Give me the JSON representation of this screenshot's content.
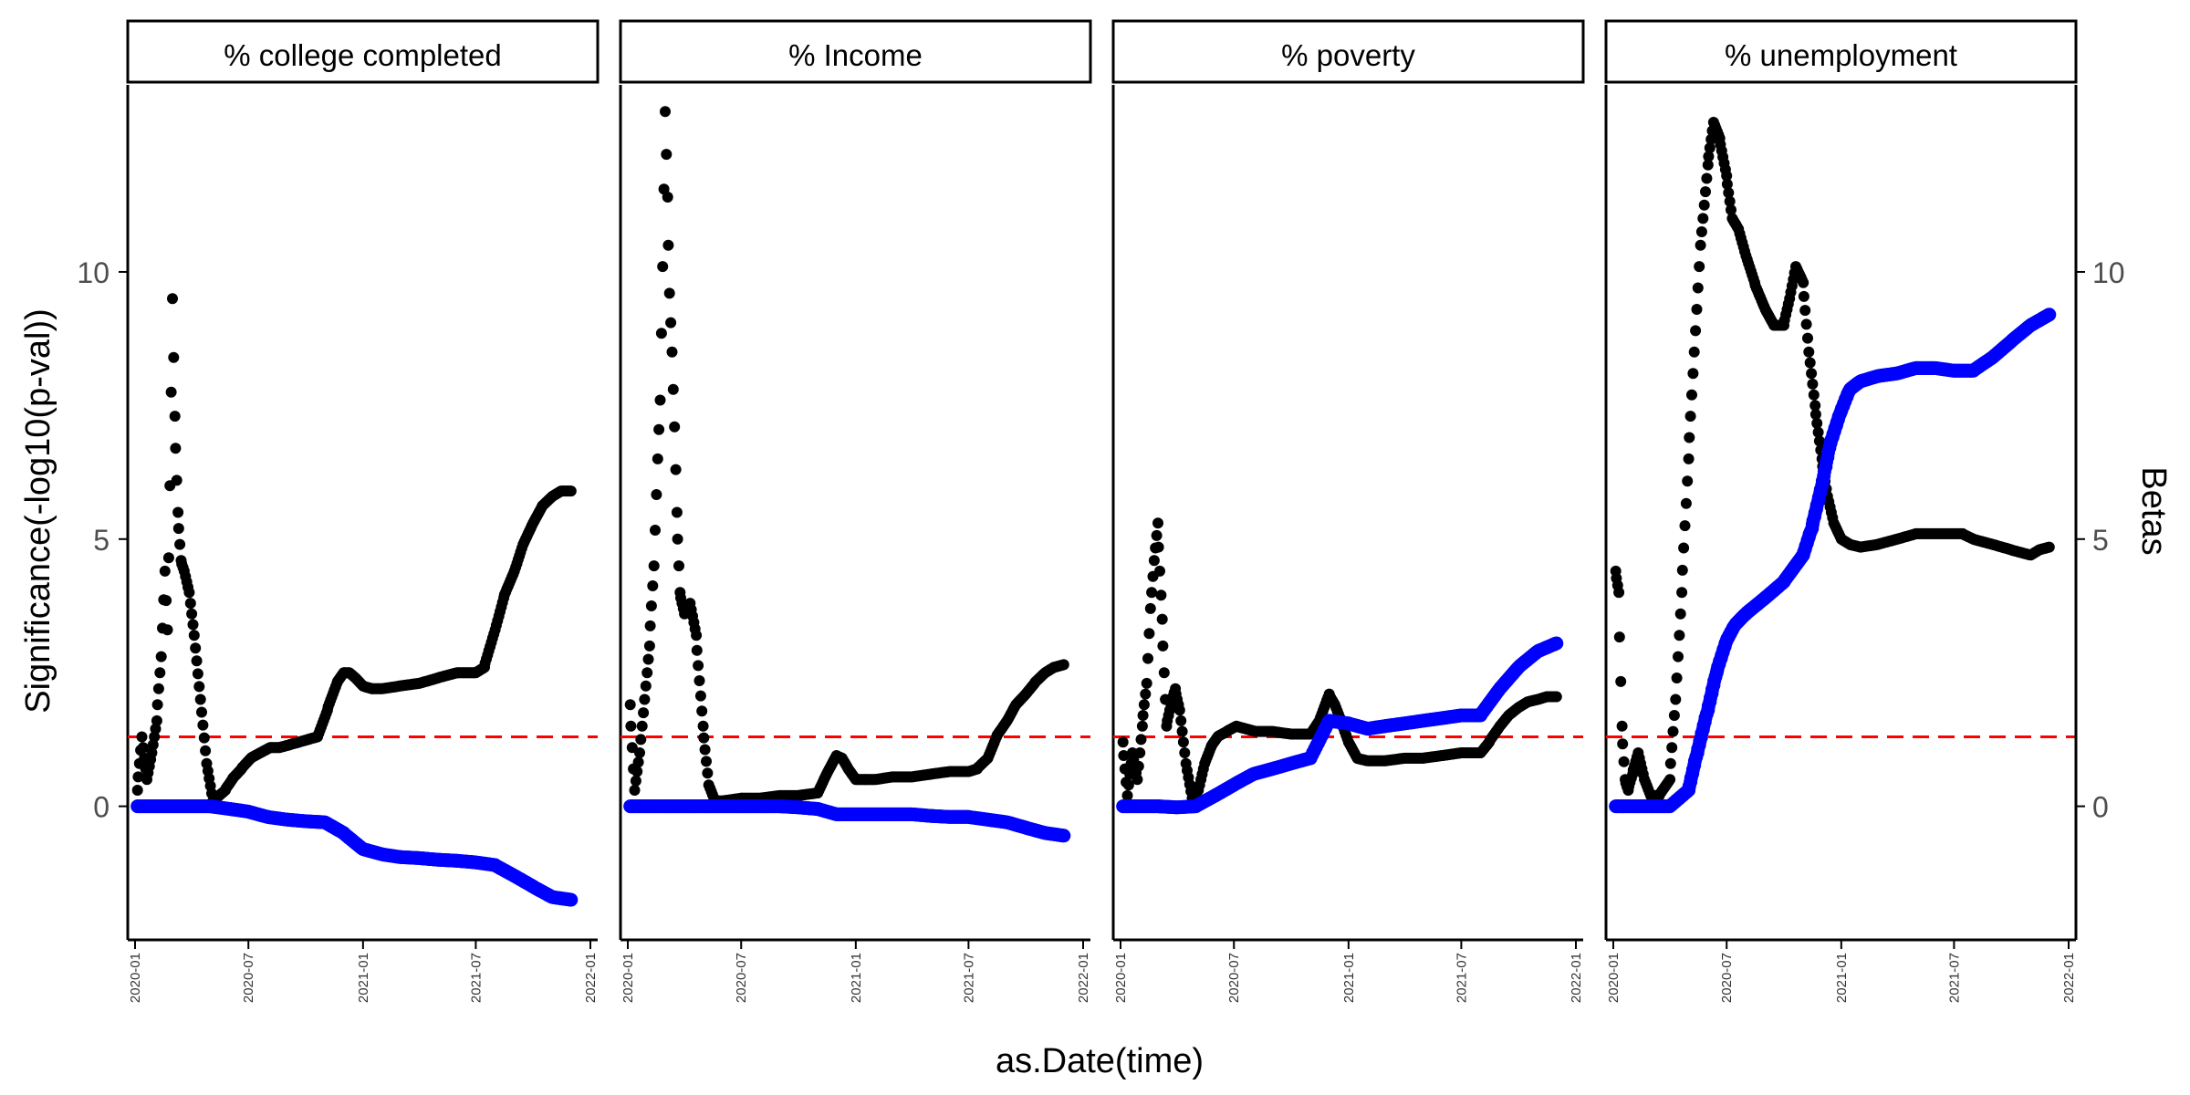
{
  "colors": {
    "significance": "#000000",
    "beta": "#0000FF",
    "threshold": "#FF0000",
    "strip_bg": "#FFFFFF"
  },
  "chart_data": {
    "type": "scatter",
    "facet_layout": "1 row x 4 columns, shared axes",
    "xlabel": "as.Date(time)",
    "ylabel_left": "Significance(-log10(p-val))",
    "ylabel_right": "Betas",
    "xlim": [
      "2020-01-01",
      "2022-01-01"
    ],
    "x_ticks": [
      "2020-01",
      "2020-07",
      "2021-01",
      "2021-07",
      "2022-01"
    ],
    "ylim": [
      -2.5,
      13.5
    ],
    "y_ticks": [
      0,
      5,
      10
    ],
    "threshold_line": {
      "y": 1.3,
      "style": "dashed"
    },
    "grid": false,
    "legend": "none",
    "panels": [
      {
        "title": "% college completed",
        "series": [
          {
            "color": "black",
            "x": [
              "2020-01-05",
              "2020-01-12",
              "2020-01-20",
              "2020-01-28",
              "2020-02-05",
              "2020-02-12",
              "2020-02-18",
              "2020-02-22",
              "2020-02-26",
              "2020-03-01",
              "2020-03-05",
              "2020-03-10",
              "2020-03-15",
              "2020-03-20",
              "2020-03-28",
              "2020-04-05",
              "2020-04-15",
              "2020-04-25",
              "2020-05-05",
              "2020-05-15",
              "2020-05-25",
              "2020-06-05",
              "2020-06-20",
              "2020-07-05",
              "2020-07-20",
              "2020-08-05",
              "2020-08-20",
              "2020-09-05",
              "2020-09-20",
              "2020-10-05",
              "2020-10-20",
              "2020-11-05",
              "2020-11-20",
              "2020-12-01",
              "2020-12-10",
              "2020-12-20",
              "2021-01-01",
              "2021-01-15",
              "2021-02-01",
              "2021-03-01",
              "2021-04-01",
              "2021-05-01",
              "2021-06-01",
              "2021-07-01",
              "2021-07-15",
              "2021-08-01",
              "2021-08-15",
              "2021-09-01",
              "2021-09-15",
              "2021-10-01",
              "2021-10-15",
              "2021-11-01",
              "2021-11-15",
              "2021-12-01"
            ],
            "y": [
              0.3,
              1.3,
              0.5,
              1.0,
              1.6,
              2.8,
              4.4,
              3.3,
              6.0,
              9.5,
              7.3,
              5.5,
              4.6,
              4.4,
              4.0,
              3.2,
              2.0,
              0.8,
              0.1,
              0.2,
              0.3,
              0.5,
              0.7,
              0.9,
              1.0,
              1.1,
              1.1,
              1.15,
              1.2,
              1.25,
              1.3,
              1.8,
              2.3,
              2.5,
              2.5,
              2.4,
              2.25,
              2.2,
              2.2,
              2.25,
              2.3,
              2.4,
              2.5,
              2.5,
              2.6,
              3.3,
              3.9,
              4.4,
              4.9,
              5.3,
              5.6,
              5.8,
              5.9,
              5.9
            ]
          },
          {
            "color": "blue",
            "x": [
              "2020-01-05",
              "2020-02-01",
              "2020-03-01",
              "2020-04-01",
              "2020-05-01",
              "2020-06-01",
              "2020-07-01",
              "2020-08-01",
              "2020-09-01",
              "2020-10-01",
              "2020-11-01",
              "2020-12-01",
              "2021-01-01",
              "2021-02-01",
              "2021-03-01",
              "2021-04-01",
              "2021-05-01",
              "2021-06-01",
              "2021-07-01",
              "2021-08-01",
              "2021-09-01",
              "2021-10-01",
              "2021-11-01",
              "2021-12-01"
            ],
            "y": [
              0.0,
              0.0,
              0.0,
              0.0,
              0.0,
              -0.05,
              -0.1,
              -0.2,
              -0.25,
              -0.28,
              -0.3,
              -0.5,
              -0.8,
              -0.9,
              -0.95,
              -0.97,
              -1.0,
              -1.02,
              -1.05,
              -1.1,
              -1.3,
              -1.5,
              -1.7,
              -1.75
            ]
          }
        ]
      },
      {
        "title": "% Income",
        "series": [
          {
            "color": "black",
            "x": [
              "2020-01-05",
              "2020-01-12",
              "2020-01-20",
              "2020-01-28",
              "2020-02-05",
              "2020-02-12",
              "2020-02-18",
              "2020-02-22",
              "2020-02-26",
              "2020-03-01",
              "2020-03-05",
              "2020-03-08",
              "2020-03-12",
              "2020-03-16",
              "2020-03-20",
              "2020-03-25",
              "2020-04-01",
              "2020-04-10",
              "2020-04-20",
              "2020-05-01",
              "2020-05-10",
              "2020-05-20",
              "2020-06-01",
              "2020-07-01",
              "2020-08-01",
              "2020-09-01",
              "2020-10-01",
              "2020-11-01",
              "2020-11-15",
              "2020-12-01",
              "2020-12-10",
              "2020-12-20",
              "2021-01-01",
              "2021-01-15",
              "2021-02-01",
              "2021-03-01",
              "2021-04-01",
              "2021-05-01",
              "2021-06-01",
              "2021-07-01",
              "2021-07-15",
              "2021-08-01",
              "2021-08-15",
              "2021-09-01",
              "2021-09-15",
              "2021-10-01",
              "2021-10-15",
              "2021-11-01",
              "2021-11-15",
              "2021-12-01"
            ],
            "y": [
              1.9,
              0.3,
              1.0,
              2.0,
              3.0,
              4.5,
              6.5,
              7.6,
              10.1,
              13.0,
              11.4,
              9.6,
              8.5,
              7.1,
              5.5,
              4.0,
              3.6,
              3.8,
              3.2,
              1.5,
              0.4,
              0.1,
              0.1,
              0.15,
              0.15,
              0.2,
              0.2,
              0.25,
              0.6,
              0.95,
              0.9,
              0.7,
              0.5,
              0.5,
              0.5,
              0.55,
              0.55,
              0.6,
              0.65,
              0.65,
              0.7,
              0.9,
              1.3,
              1.6,
              1.9,
              2.1,
              2.3,
              2.5,
              2.6,
              2.65
            ]
          },
          {
            "color": "blue",
            "x": [
              "2020-01-05",
              "2020-02-01",
              "2020-03-01",
              "2020-04-01",
              "2020-05-01",
              "2020-06-01",
              "2020-07-01",
              "2020-08-01",
              "2020-09-01",
              "2020-10-01",
              "2020-11-01",
              "2020-12-01",
              "2021-01-01",
              "2021-02-01",
              "2021-03-01",
              "2021-04-01",
              "2021-05-01",
              "2021-06-01",
              "2021-07-01",
              "2021-08-01",
              "2021-09-01",
              "2021-10-01",
              "2021-11-01",
              "2021-12-01"
            ],
            "y": [
              0.0,
              0.0,
              0.0,
              0.0,
              0.0,
              0.0,
              0.0,
              0.0,
              0.0,
              -0.02,
              -0.05,
              -0.15,
              -0.15,
              -0.15,
              -0.15,
              -0.15,
              -0.18,
              -0.2,
              -0.2,
              -0.25,
              -0.3,
              -0.4,
              -0.5,
              -0.55
            ]
          }
        ]
      },
      {
        "title": "% poverty",
        "series": [
          {
            "color": "black",
            "x": [
              "2020-01-05",
              "2020-01-12",
              "2020-01-20",
              "2020-01-28",
              "2020-02-05",
              "2020-02-12",
              "2020-02-18",
              "2020-02-24",
              "2020-03-01",
              "2020-03-08",
              "2020-03-15",
              "2020-03-22",
              "2020-03-29",
              "2020-04-05",
              "2020-04-15",
              "2020-04-25",
              "2020-05-05",
              "2020-05-15",
              "2020-05-25",
              "2020-06-05",
              "2020-06-20",
              "2020-07-05",
              "2020-07-20",
              "2020-08-05",
              "2020-09-01",
              "2020-10-01",
              "2020-11-01",
              "2020-11-15",
              "2020-12-01",
              "2020-12-10",
              "2020-12-20",
              "2021-01-01",
              "2021-01-15",
              "2021-02-01",
              "2021-03-01",
              "2021-04-01",
              "2021-05-01",
              "2021-06-01",
              "2021-07-01",
              "2021-07-15",
              "2021-08-01",
              "2021-08-15",
              "2021-09-01",
              "2021-09-15",
              "2021-10-01",
              "2021-10-15",
              "2021-11-01",
              "2021-11-15",
              "2021-12-01"
            ],
            "y": [
              1.2,
              0.2,
              1.0,
              0.5,
              1.5,
              2.3,
              3.7,
              4.6,
              5.3,
              3.5,
              1.5,
              1.9,
              2.2,
              1.8,
              0.8,
              0.15,
              0.3,
              0.8,
              1.1,
              1.3,
              1.4,
              1.5,
              1.45,
              1.4,
              1.4,
              1.35,
              1.35,
              1.6,
              2.1,
              1.9,
              1.6,
              1.2,
              0.9,
              0.85,
              0.85,
              0.9,
              0.9,
              0.95,
              1.0,
              1.0,
              1.0,
              1.2,
              1.5,
              1.7,
              1.85,
              1.95,
              2.0,
              2.05,
              2.05
            ]
          },
          {
            "color": "blue",
            "x": [
              "2020-01-05",
              "2020-02-01",
              "2020-03-01",
              "2020-04-01",
              "2020-05-01",
              "2020-06-01",
              "2020-07-01",
              "2020-08-01",
              "2020-09-01",
              "2020-10-01",
              "2020-11-01",
              "2020-12-01",
              "2021-01-01",
              "2021-02-01",
              "2021-03-01",
              "2021-04-01",
              "2021-05-01",
              "2021-06-01",
              "2021-07-01",
              "2021-08-01",
              "2021-09-01",
              "2021-10-01",
              "2021-11-01",
              "2021-12-01"
            ],
            "y": [
              0.0,
              0.0,
              0.0,
              -0.02,
              0.0,
              0.2,
              0.4,
              0.6,
              0.7,
              0.8,
              0.9,
              1.6,
              1.55,
              1.45,
              1.5,
              1.55,
              1.6,
              1.65,
              1.7,
              1.7,
              2.2,
              2.6,
              2.9,
              3.05
            ]
          }
        ]
      },
      {
        "title": "% unemployment",
        "series": [
          {
            "color": "black",
            "x": [
              "2020-01-05",
              "2020-01-10",
              "2020-01-15",
              "2020-01-20",
              "2020-01-25",
              "2020-02-01",
              "2020-02-10",
              "2020-02-20",
              "2020-03-01",
              "2020-03-15",
              "2020-04-01",
              "2020-04-10",
              "2020-04-20",
              "2020-05-01",
              "2020-05-10",
              "2020-05-20",
              "2020-06-01",
              "2020-06-10",
              "2020-06-20",
              "2020-07-01",
              "2020-07-10",
              "2020-07-20",
              "2020-08-01",
              "2020-08-15",
              "2020-09-01",
              "2020-09-15",
              "2020-10-01",
              "2020-10-10",
              "2020-10-20",
              "2020-11-01",
              "2020-11-10",
              "2020-11-20",
              "2020-12-01",
              "2020-12-10",
              "2020-12-20",
              "2021-01-01",
              "2021-01-15",
              "2021-02-01",
              "2021-03-01",
              "2021-04-01",
              "2021-05-01",
              "2021-06-01",
              "2021-07-01",
              "2021-07-15",
              "2021-08-01",
              "2021-09-01",
              "2021-10-01",
              "2021-11-01",
              "2021-11-15",
              "2021-12-01"
            ],
            "y": [
              4.4,
              4.0,
              1.5,
              0.5,
              0.3,
              0.6,
              1.0,
              0.5,
              0.2,
              0.2,
              0.5,
              2.0,
              4.0,
              6.5,
              8.5,
              10.5,
              12.0,
              12.8,
              12.5,
              11.8,
              11.0,
              10.8,
              10.3,
              9.8,
              9.3,
              9.0,
              9.0,
              9.5,
              10.1,
              9.8,
              8.5,
              7.5,
              6.5,
              5.8,
              5.3,
              5.0,
              4.9,
              4.85,
              4.9,
              5.0,
              5.1,
              5.1,
              5.1,
              5.1,
              5.0,
              4.9,
              4.8,
              4.7,
              4.8,
              4.85
            ]
          },
          {
            "color": "blue",
            "x": [
              "2020-01-05",
              "2020-02-01",
              "2020-03-01",
              "2020-04-01",
              "2020-05-01",
              "2020-05-15",
              "2020-06-01",
              "2020-06-15",
              "2020-07-01",
              "2020-07-15",
              "2020-08-01",
              "2020-09-01",
              "2020-10-01",
              "2020-11-01",
              "2020-11-15",
              "2020-12-01",
              "2020-12-15",
              "2021-01-01",
              "2021-01-15",
              "2021-02-01",
              "2021-03-01",
              "2021-04-01",
              "2021-05-01",
              "2021-06-01",
              "2021-07-01",
              "2021-08-01",
              "2021-09-01",
              "2021-10-01",
              "2021-11-01",
              "2021-12-01"
            ],
            "y": [
              0.0,
              0.0,
              0.0,
              0.0,
              0.3,
              1.0,
              1.8,
              2.5,
              3.1,
              3.4,
              3.6,
              3.9,
              4.2,
              4.7,
              5.2,
              6.0,
              6.8,
              7.4,
              7.8,
              7.95,
              8.05,
              8.1,
              8.2,
              8.2,
              8.15,
              8.15,
              8.4,
              8.7,
              9.0,
              9.2
            ]
          }
        ]
      }
    ]
  }
}
